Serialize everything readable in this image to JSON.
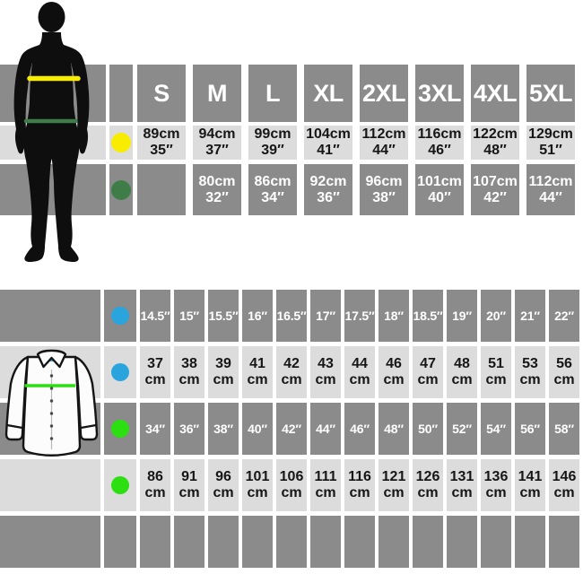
{
  "colors": {
    "band_dark": "#8b8b8b",
    "band_light": "#dcdcdd",
    "yellow": "#f8ec00",
    "dark_green": "#3e7c48",
    "blue": "#29a4dc",
    "bright_green": "#2bdf11",
    "silhouette_black": "#0e0e0e",
    "text_on_dark": "#ffffff",
    "text_on_light": "#161616"
  },
  "chart_data": [
    {
      "type": "table",
      "id": "adult",
      "columns": [
        "S",
        "M",
        "L",
        "XL",
        "2XL",
        "3XL",
        "4XL",
        "5XL"
      ],
      "rows": [
        {
          "marker": "yellow",
          "tone": "light",
          "cm": [
            89,
            94,
            99,
            104,
            112,
            116,
            122,
            129
          ],
          "inch": [
            35,
            37,
            39,
            41,
            44,
            46,
            48,
            51
          ]
        },
        {
          "marker": "dark_green",
          "tone": "dark",
          "cm": [
            null,
            80,
            86,
            92,
            96,
            101,
            107,
            112
          ],
          "inch": [
            null,
            32,
            34,
            36,
            38,
            40,
            42,
            44
          ]
        }
      ]
    },
    {
      "type": "table",
      "id": "shirt",
      "rows": [
        {
          "marker": "blue",
          "tone": "dark",
          "unit": "inch",
          "values": [
            14.5,
            15,
            15.5,
            16,
            16.5,
            17,
            17.5,
            18,
            18.5,
            19,
            20,
            21,
            22
          ]
        },
        {
          "marker": "blue",
          "tone": "light",
          "unit": "cm",
          "values": [
            37,
            38,
            39,
            41,
            42,
            43,
            44,
            46,
            47,
            48,
            51,
            53,
            56
          ]
        },
        {
          "marker": "bright_green",
          "tone": "dark",
          "unit": "inch",
          "values": [
            34,
            36,
            38,
            40,
            42,
            44,
            46,
            48,
            50,
            52,
            54,
            56,
            58
          ]
        },
        {
          "marker": "bright_green",
          "tone": "light",
          "unit": "cm",
          "values": [
            86,
            91,
            96,
            101,
            106,
            111,
            116,
            121,
            126,
            131,
            136,
            141,
            146
          ]
        },
        {
          "marker": null,
          "tone": "dark",
          "unit": null,
          "values": [
            null,
            null,
            null,
            null,
            null,
            null,
            null,
            null,
            null,
            null,
            null,
            null,
            null
          ]
        }
      ]
    }
  ],
  "units": {
    "cm_suffix": "cm",
    "inch_suffix": "″"
  }
}
